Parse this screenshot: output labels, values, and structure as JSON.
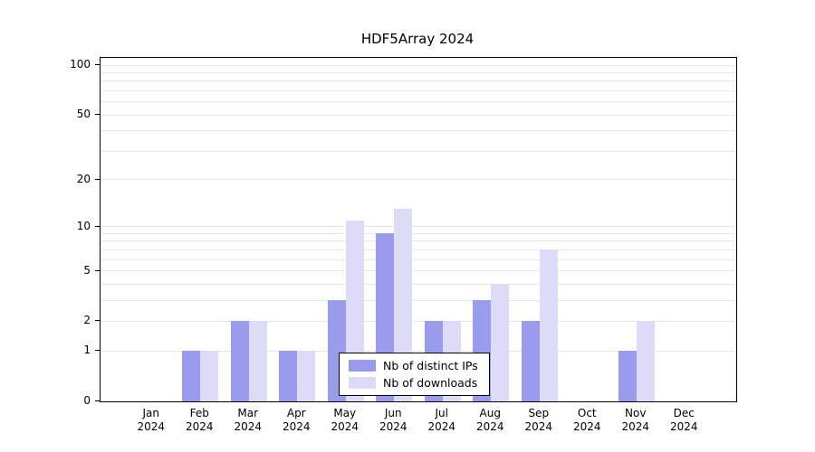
{
  "title": "HDF5Array 2024",
  "chart_data": {
    "type": "bar",
    "categories": [
      "Jan",
      "Feb",
      "Mar",
      "Apr",
      "May",
      "Jun",
      "Jul",
      "Aug",
      "Sep",
      "Oct",
      "Nov",
      "Dec"
    ],
    "category_year": "2024",
    "series": [
      {
        "name": "Nb of distinct IPs",
        "color": "#9b9bee",
        "values": [
          0,
          1,
          2,
          1,
          3,
          9,
          2,
          3,
          2,
          0,
          1,
          0
        ]
      },
      {
        "name": "Nb of downloads",
        "color": "#dcdcf9",
        "values": [
          0,
          1,
          2,
          1,
          11,
          13,
          2,
          4,
          7,
          0,
          2,
          0
        ]
      }
    ],
    "title": "HDF5Array 2024",
    "xlabel": "",
    "ylabel": "",
    "ylim": [
      0,
      100
    ],
    "y_scale": "log10(value+1)",
    "y_tick_labels": [
      0,
      1,
      2,
      5,
      10,
      20,
      50,
      100
    ],
    "gridline_values": [
      1,
      2,
      3,
      4,
      5,
      6,
      7,
      8,
      9,
      10,
      20,
      30,
      40,
      50,
      60,
      70,
      80,
      90,
      100
    ],
    "grid": true,
    "legend_position": "bottom-center",
    "legend_entries": [
      "Nb of distinct IPs",
      "Nb of downloads"
    ]
  }
}
